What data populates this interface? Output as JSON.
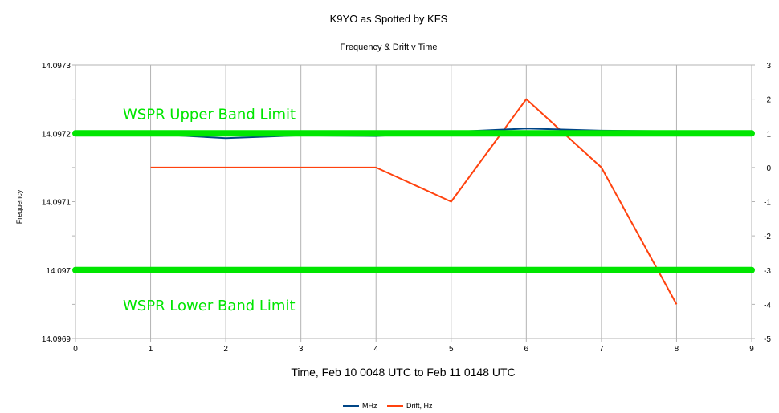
{
  "chart_data": {
    "type": "line",
    "title": "K9YO as Spotted by KFS",
    "subtitle": "Frequency & Drift  v Time",
    "xlabel": "Time, Feb 10 0048 UTC to Feb 11 0148 UTC",
    "ylabel": "Frequency",
    "xlim": [
      0,
      9
    ],
    "xticks": [
      "0",
      "1",
      "2",
      "3",
      "4",
      "5",
      "6",
      "7",
      "8",
      "9"
    ],
    "ylim": [
      14.0969,
      14.0973
    ],
    "yticks": [
      "14.0973",
      "14.09725",
      "14.0972",
      "14.09715",
      "14.0971",
      "14.09705",
      "14.097",
      "14.09695",
      "14.0969"
    ],
    "yticks_visible": [
      "14.0973",
      "14.0972",
      "14.0971",
      "14.097",
      "14.0969"
    ],
    "y2lim": [
      -5,
      3
    ],
    "y2ticks": [
      "3",
      "2",
      "1",
      "0",
      "-1",
      "-2",
      "-3",
      "-4",
      "-5"
    ],
    "grid": "vertical",
    "legend_position": "bottom",
    "series": [
      {
        "name": "MHz",
        "axis": "left",
        "color": "#004586",
        "x": [
          1,
          2,
          3,
          4,
          5,
          6,
          7,
          8
        ],
        "values": [
          14.097199,
          14.097193,
          14.097197,
          14.097196,
          14.097202,
          14.097207,
          14.097204,
          14.097203
        ]
      },
      {
        "name": "Drift, Hz",
        "axis": "right",
        "color": "#ff420e",
        "x": [
          1,
          2,
          3,
          4,
          5,
          6,
          7,
          8
        ],
        "values": [
          0,
          0,
          0,
          0,
          -1,
          2,
          0,
          -4
        ]
      }
    ],
    "annotations": [
      {
        "text": "WSPR Upper Band Limit",
        "y": 14.0972,
        "color": "#00e600"
      },
      {
        "text": "WSPR Lower Band Limit",
        "y": 14.097,
        "color": "#00e600"
      }
    ]
  }
}
